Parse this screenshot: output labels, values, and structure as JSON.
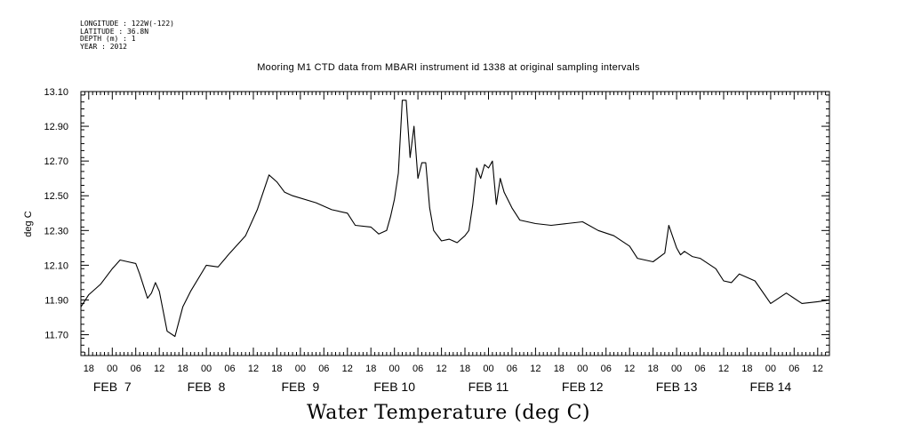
{
  "meta_lines": [
    "LONGITUDE : 122W(-122)",
    "LATITUDE : 36.8N",
    "DEPTH (m) : 1",
    "YEAR : 2012"
  ],
  "chart_data": {
    "type": "line",
    "title": "Mooring M1 CTD data from MBARI instrument id 1338 at original sampling intervals",
    "xlabel": "Water Temperature (deg C)",
    "ylabel": "deg C",
    "ylim": [
      11.58,
      13.1
    ],
    "y_ticks": [
      11.7,
      11.9,
      12.1,
      12.3,
      12.5,
      12.7,
      12.9,
      13.1
    ],
    "xlim": [
      "2012-02-06T16:00",
      "2012-02-14T15:00"
    ],
    "x_tick_labels": [
      "18",
      "00",
      "06",
      "12",
      "18",
      "00",
      "06",
      "12",
      "18",
      "00",
      "06",
      "12",
      "18",
      "00",
      "06",
      "12",
      "18",
      "00",
      "06",
      "12",
      "18",
      "00",
      "06",
      "12",
      "18",
      "00",
      "06",
      "12",
      "18",
      "00",
      "06",
      "12"
    ],
    "day_labels": [
      "FEB  7",
      "FEB  8",
      "FEB  9",
      "FEB 10",
      "FEB 11",
      "FEB 12",
      "FEB 13",
      "FEB 14"
    ],
    "grid": false,
    "series": [
      {
        "x": [
          "2012-02-06T16:00",
          "2012-02-06T18:00",
          "2012-02-06T21:00",
          "2012-02-07T00:00",
          "2012-02-07T02:00",
          "2012-02-07T04:00",
          "2012-02-07T06:00",
          "2012-02-07T07:00",
          "2012-02-07T08:00",
          "2012-02-07T09:00",
          "2012-02-07T10:00",
          "2012-02-07T11:00",
          "2012-02-07T12:00",
          "2012-02-07T14:00",
          "2012-02-07T16:00",
          "2012-02-07T18:00",
          "2012-02-07T20:00",
          "2012-02-08T00:00",
          "2012-02-08T03:00",
          "2012-02-08T06:00",
          "2012-02-08T10:00",
          "2012-02-08T13:00",
          "2012-02-08T16:00",
          "2012-02-08T18:00",
          "2012-02-08T20:00",
          "2012-02-08T22:00",
          "2012-02-09T04:00",
          "2012-02-09T08:00",
          "2012-02-09T12:00",
          "2012-02-09T14:00",
          "2012-02-09T18:00",
          "2012-02-09T20:00",
          "2012-02-09T22:00",
          "2012-02-09T23:00",
          "2012-02-10T00:00",
          "2012-02-10T01:00",
          "2012-02-10T02:00",
          "2012-02-10T03:00",
          "2012-02-10T04:00",
          "2012-02-10T05:00",
          "2012-02-10T06:00",
          "2012-02-10T07:00",
          "2012-02-10T08:00",
          "2012-02-10T09:00",
          "2012-02-10T10:00",
          "2012-02-10T12:00",
          "2012-02-10T14:00",
          "2012-02-10T16:00",
          "2012-02-10T18:00",
          "2012-02-10T19:00",
          "2012-02-10T20:00",
          "2012-02-10T21:00",
          "2012-02-10T22:00",
          "2012-02-10T23:00",
          "2012-02-11T00:00",
          "2012-02-11T01:00",
          "2012-02-11T02:00",
          "2012-02-11T03:00",
          "2012-02-11T04:00",
          "2012-02-11T06:00",
          "2012-02-11T08:00",
          "2012-02-11T12:00",
          "2012-02-11T16:00",
          "2012-02-11T20:00",
          "2012-02-12T00:00",
          "2012-02-12T04:00",
          "2012-02-12T08:00",
          "2012-02-12T12:00",
          "2012-02-12T14:00",
          "2012-02-12T18:00",
          "2012-02-12T21:00",
          "2012-02-12T22:00",
          "2012-02-13T00:00",
          "2012-02-13T01:00",
          "2012-02-13T02:00",
          "2012-02-13T04:00",
          "2012-02-13T06:00",
          "2012-02-13T10:00",
          "2012-02-13T12:00",
          "2012-02-13T14:00",
          "2012-02-13T16:00",
          "2012-02-13T20:00",
          "2012-02-14T00:00",
          "2012-02-14T04:00",
          "2012-02-14T08:00",
          "2012-02-14T12:00",
          "2012-02-14T15:00"
        ],
        "y": [
          11.86,
          11.93,
          11.99,
          12.08,
          12.13,
          12.12,
          12.11,
          12.05,
          11.98,
          11.91,
          11.94,
          12.0,
          11.95,
          11.72,
          11.69,
          11.86,
          11.95,
          12.1,
          12.09,
          12.17,
          12.27,
          12.42,
          12.62,
          12.58,
          12.52,
          12.5,
          12.46,
          12.42,
          12.4,
          12.33,
          12.32,
          12.28,
          12.3,
          12.38,
          12.48,
          12.63,
          13.05,
          13.05,
          12.72,
          12.9,
          12.6,
          12.69,
          12.69,
          12.43,
          12.3,
          12.24,
          12.25,
          12.23,
          12.27,
          12.3,
          12.45,
          12.66,
          12.6,
          12.68,
          12.66,
          12.7,
          12.45,
          12.6,
          12.52,
          12.43,
          12.36,
          12.34,
          12.33,
          12.34,
          12.35,
          12.3,
          12.27,
          12.21,
          12.14,
          12.12,
          12.17,
          12.33,
          12.2,
          12.16,
          12.18,
          12.15,
          12.14,
          12.08,
          12.01,
          12.0,
          12.05,
          12.01,
          11.88,
          11.94,
          11.88,
          11.89,
          11.9
        ]
      }
    ]
  }
}
